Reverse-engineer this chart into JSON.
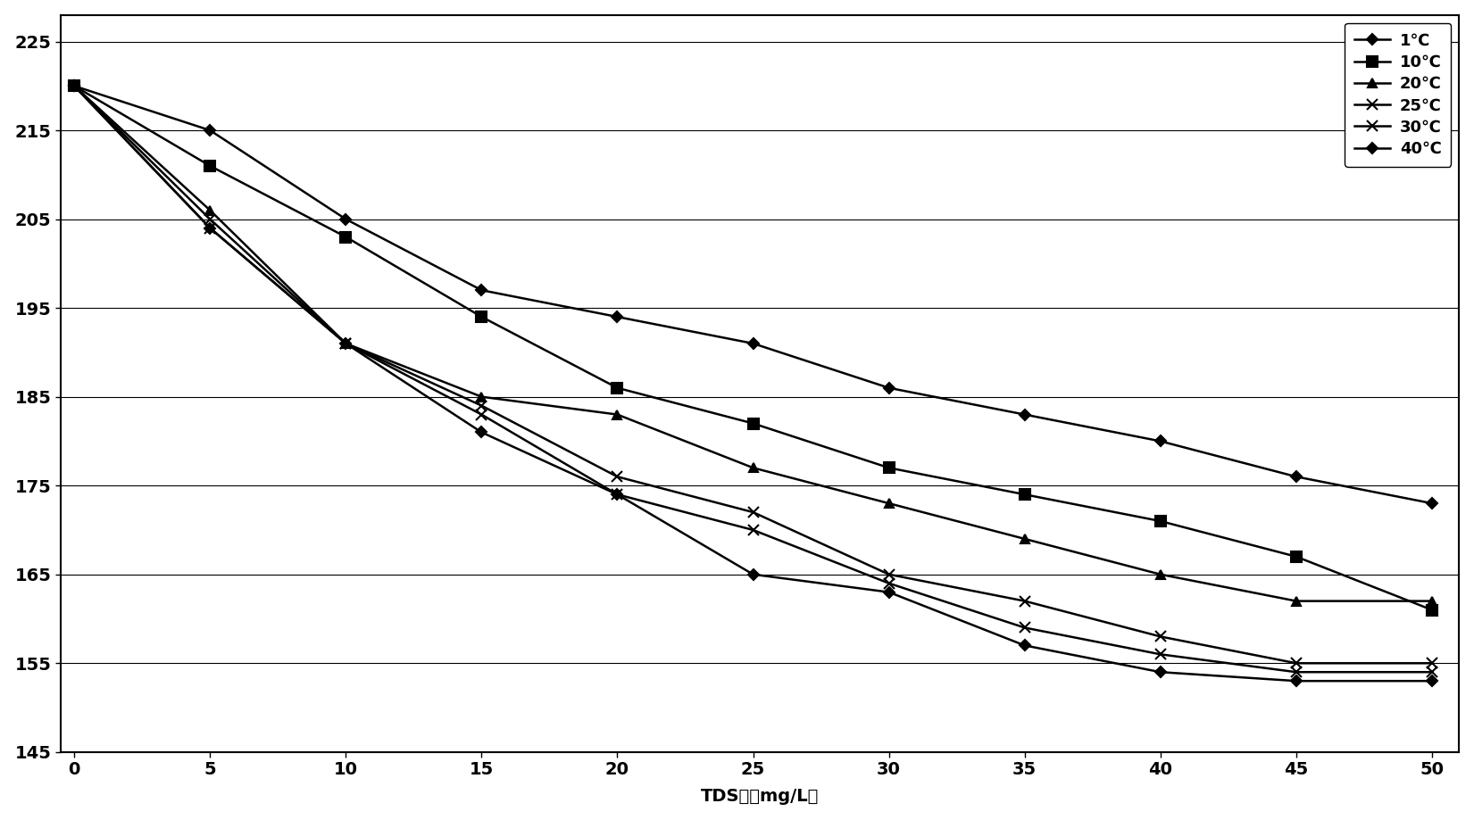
{
  "x": [
    0,
    5,
    10,
    15,
    20,
    25,
    30,
    35,
    40,
    45,
    50
  ],
  "series": [
    {
      "label": "1℃",
      "marker": "D",
      "markersize": 6,
      "values": [
        220,
        215,
        205,
        197,
        194,
        191,
        186,
        183,
        180,
        176,
        173
      ]
    },
    {
      "label": "10℃",
      "marker": "s",
      "markersize": 8,
      "values": [
        220,
        211,
        203,
        194,
        186,
        182,
        177,
        174,
        171,
        167,
        161
      ]
    },
    {
      "label": "20℃",
      "marker": "^",
      "markersize": 7,
      "values": [
        220,
        206,
        191,
        185,
        183,
        177,
        173,
        169,
        165,
        162,
        162
      ]
    },
    {
      "label": "25℃",
      "marker": "x",
      "markersize": 9,
      "values": [
        220,
        205,
        191,
        184,
        176,
        172,
        165,
        162,
        158,
        155,
        155
      ]
    },
    {
      "label": "30℃",
      "marker": "x",
      "markersize": 9,
      "values": [
        220,
        204,
        191,
        183,
        174,
        170,
        164,
        159,
        156,
        154,
        154
      ]
    },
    {
      "label": "40℃",
      "marker": "D",
      "markersize": 6,
      "values": [
        220,
        204,
        191,
        181,
        174,
        165,
        163,
        157,
        154,
        153,
        153
      ]
    }
  ],
  "xlabel": "TDS値（mg/L）",
  "xlim": [
    -0.5,
    51
  ],
  "ylim": [
    145,
    228
  ],
  "xticks": [
    0,
    5,
    10,
    15,
    20,
    25,
    30,
    35,
    40,
    45,
    50
  ],
  "yticks": [
    145,
    155,
    165,
    175,
    185,
    195,
    205,
    215,
    225
  ],
  "line_color": "#000000",
  "background_color": "#ffffff",
  "legend_loc": "upper right",
  "axis_fontsize": 14,
  "legend_fontsize": 13,
  "tick_fontsize": 14,
  "linewidth": 1.8,
  "markersizes": [
    6,
    8,
    7,
    9,
    9,
    6
  ]
}
